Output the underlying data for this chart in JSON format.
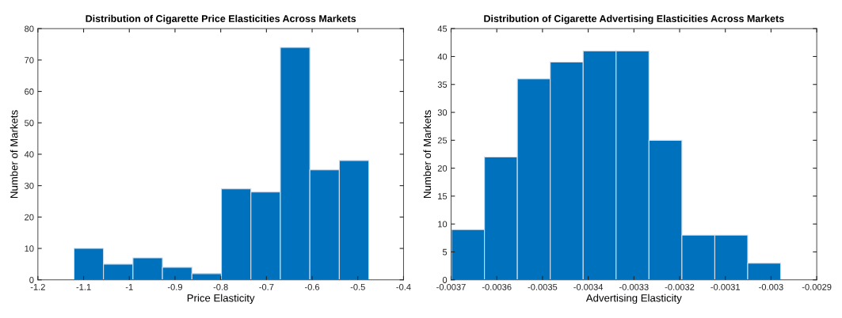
{
  "chart_data": [
    {
      "type": "histogram",
      "title": "Distribution of Cigarette Price Elasticities Across Markets",
      "xlabel": "Price Elasticity",
      "ylabel": "Number of Markets",
      "bins": [
        -1.121,
        -1.0565,
        -0.992,
        -0.9275,
        -0.863,
        -0.7985,
        -0.734,
        -0.6695,
        -0.605,
        -0.5405,
        -0.476
      ],
      "values": [
        10,
        5,
        7,
        4,
        2,
        29,
        28,
        74,
        35,
        38
      ],
      "color": "#0072bd",
      "xlim": [
        -1.2,
        -0.4
      ],
      "xticks": [
        -1.2,
        -1.1,
        -1,
        -0.9,
        -0.8,
        -0.7,
        -0.6,
        -0.5,
        -0.4
      ],
      "ylim": [
        0,
        80
      ],
      "yticks": [
        0,
        10,
        20,
        30,
        40,
        50,
        60,
        70,
        80
      ],
      "grid": false
    },
    {
      "type": "histogram",
      "title": "Distribution of Cigarette Advertising Elasticities Across Markets",
      "xlabel": "Advertising Elasticity",
      "ylabel": "Number of Markets",
      "bins": [
        -0.003699,
        -0.003627,
        -0.003555,
        -0.003483,
        -0.003411,
        -0.003339,
        -0.003267,
        -0.003195,
        -0.003123,
        -0.003051,
        -0.002979
      ],
      "values": [
        9,
        22,
        36,
        39,
        41,
        41,
        25,
        8,
        8,
        3
      ],
      "color": "#0072bd",
      "xlim": [
        -0.0037,
        -0.0029
      ],
      "xticks": [
        -0.0037,
        -0.0036,
        -0.0035,
        -0.0034,
        -0.0033,
        -0.0032,
        -0.0031,
        -0.003,
        -0.0029
      ],
      "ylim": [
        0,
        45
      ],
      "yticks": [
        0,
        5,
        10,
        15,
        20,
        25,
        30,
        35,
        40,
        45
      ],
      "grid": false
    }
  ]
}
